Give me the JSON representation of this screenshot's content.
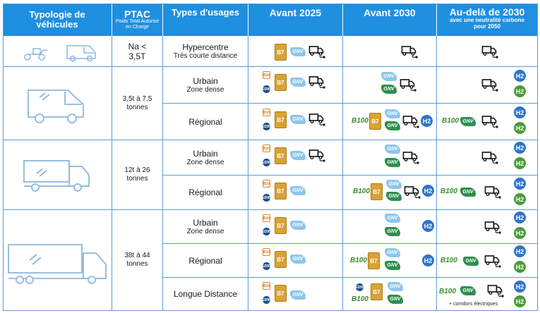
{
  "headers": {
    "typologie": "Typologie de véhicules",
    "ptac": "PTAC",
    "ptac_sub": "Poids Total Autorisé en Charge",
    "usages": "Types d'usages",
    "avant2025": "Avant 2025",
    "avant2030": "Avant 2030",
    "audela": "Au-delà de 2030",
    "audela_sub": "avec une neutralité carbone pour 2050"
  },
  "ptac_values": {
    "g1": "Na < 3,5T",
    "g2": "3,5t à 7,5 tonnes",
    "g3": "12t à 26 tonnes",
    "g4": "38t à 44 tonnes"
  },
  "usages": {
    "r1": {
      "main": "Hypercentre",
      "sub": "Très courte distance"
    },
    "r2": {
      "main": "Urbain",
      "sub": "Zone dense"
    },
    "r3": {
      "main": "Régional",
      "sub": ""
    },
    "r4": {
      "main": "Urbain",
      "sub": "Zone dense"
    },
    "r5": {
      "main": "Régional",
      "sub": ""
    },
    "r6": {
      "main": "Urbain",
      "sub": "Zone dense"
    },
    "r7": {
      "main": "Régional",
      "sub": ""
    },
    "r8": {
      "main": "Longue Distance",
      "sub": ""
    }
  },
  "badges": {
    "b7": "B7",
    "b10": "B10",
    "ed95": "ED95",
    "gnv": "GNV",
    "h2": "H2",
    "b100": "B100"
  },
  "corridor_note": "+ corridors électriques",
  "colors": {
    "header_bg": "#1f8fe0",
    "border": "#5a9bd4",
    "b7": "#d9a334",
    "gnv_light": "#8ec6ea",
    "gnv_green": "#2f8f4e",
    "h2_blue": "#2e74c7",
    "h2_green": "#4b9a3a",
    "b100": "#3b8d2f"
  },
  "icons": [
    "scooter-icon",
    "van-icon",
    "small-truck-icon",
    "rigid-truck-icon",
    "semi-truck-icon",
    "electric-truck-icon"
  ]
}
